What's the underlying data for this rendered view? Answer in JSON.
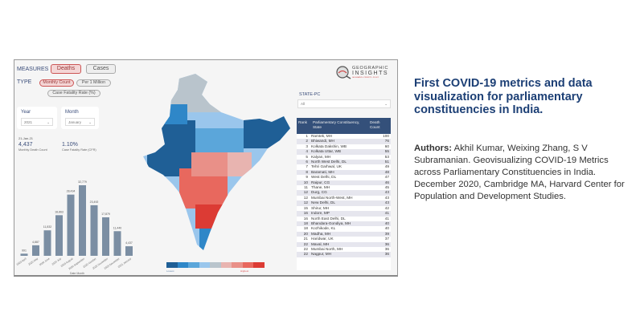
{
  "dashboard": {
    "measures_label": "MEASURES",
    "deaths_btn": "Deaths",
    "cases_btn": "Cases",
    "type_label": "TYPE",
    "monthly_btn": "Monthly Count",
    "per_million_btn": "Per 1 Million",
    "cfr_btn": "Case Fatality Rate (%)",
    "year_label": "Year",
    "year_value": "2021",
    "month_label": "Month",
    "month_value": "January",
    "date": "21-Jan-21",
    "death_count": "4,437",
    "death_count_label": "Monthly Death Count",
    "cfr_value": "1.10%",
    "cfr_label": "Case Fatality Rate (CFR)",
    "logo": {
      "line1": "GEOGRAPHIC",
      "line2": "INSIGHTS",
      "tagline": "GEOGRAPHY • PRIORITY • POLICY"
    },
    "state_pc_label": "STATE-PC",
    "state_pc_value": "All",
    "legend": {
      "low": "Lowest",
      "high": "Highest",
      "colors": [
        "#1f5f96",
        "#2f87c8",
        "#5ba6da",
        "#9ac6ec",
        "#b9c4cc",
        "#e8b4b0",
        "#e99088",
        "#e8685e",
        "#dc3b34"
      ]
    },
    "table": {
      "headers": [
        "Rank",
        "Parliamentary Constituency, State",
        "Death Count"
      ],
      "rows": [
        [
          "1",
          "Ramtek, MH",
          "100"
        ],
        [
          "2",
          "Bhiwandi, MH",
          "76"
        ],
        [
          "3",
          "Kolkata Dakshin, WB",
          "60"
        ],
        [
          "4",
          "Kolkata Uttar, WB",
          "55"
        ],
        [
          "5",
          "Kalyan, MH",
          "53"
        ],
        [
          "6",
          "North West Delhi, DL",
          "51"
        ],
        [
          "7",
          "Tehri Garhwal, UK",
          "49"
        ],
        [
          "8",
          "Baramati, MH",
          "48"
        ],
        [
          "9",
          "West Delhi, DL",
          "47"
        ],
        [
          "10",
          "Raipur, CG",
          "46"
        ],
        [
          "11",
          "Thane, MH",
          "45"
        ],
        [
          "12",
          "Durg, CG",
          "43"
        ],
        [
          "12",
          "Mumbai North-West, MH",
          "43"
        ],
        [
          "12",
          "New Delhi, DL",
          "43"
        ],
        [
          "15",
          "Shirur, MH",
          "42"
        ],
        [
          "16",
          "Indore, MP",
          "41"
        ],
        [
          "16",
          "North East Delhi, DL",
          "41"
        ],
        [
          "18",
          "Bhandara-Gondiya, MH",
          "40"
        ],
        [
          "18",
          "Kozhikode, KL",
          "40"
        ],
        [
          "20",
          "Madha, MH",
          "39"
        ],
        [
          "21",
          "Haridwar, UK",
          "37"
        ],
        [
          "22",
          "Maval, MH",
          "36"
        ],
        [
          "22",
          "Mumbai North, MH",
          "36"
        ],
        [
          "22",
          "Nagpur, MH",
          "36"
        ]
      ]
    }
  },
  "chart_data": {
    "type": "bar",
    "xlabel": "Date Month",
    "categories": [
      "2020 April",
      "2020 May",
      "2020 June",
      "2020 July",
      "2020 August",
      "2020 September",
      "2020 October",
      "2020 November",
      "2020 December",
      "2021 January"
    ],
    "values": [
      991,
      4887,
      11832,
      18863,
      28434,
      32779,
      23492,
      17879,
      11440,
      4437
    ],
    "labels": [
      "991",
      "4,887",
      "11,832",
      "18,863",
      "28,434",
      "32,779",
      "23,492",
      "17,879",
      "11,440",
      "4,437"
    ],
    "color": "#7b8ea3"
  },
  "article": {
    "title": "First COVID-19 metrics and data visualization for parliamentary constituencies in India.",
    "authors_label": "Authors:",
    "authors_text": " Akhil Kumar, Weixing Zhang, S V Subramanian. Geovisualizing COVID-19 Metrics across Parliamentary Constituencies in India. December 2020, Cambridge MA, Harvard Center for Population and Development Studies."
  }
}
